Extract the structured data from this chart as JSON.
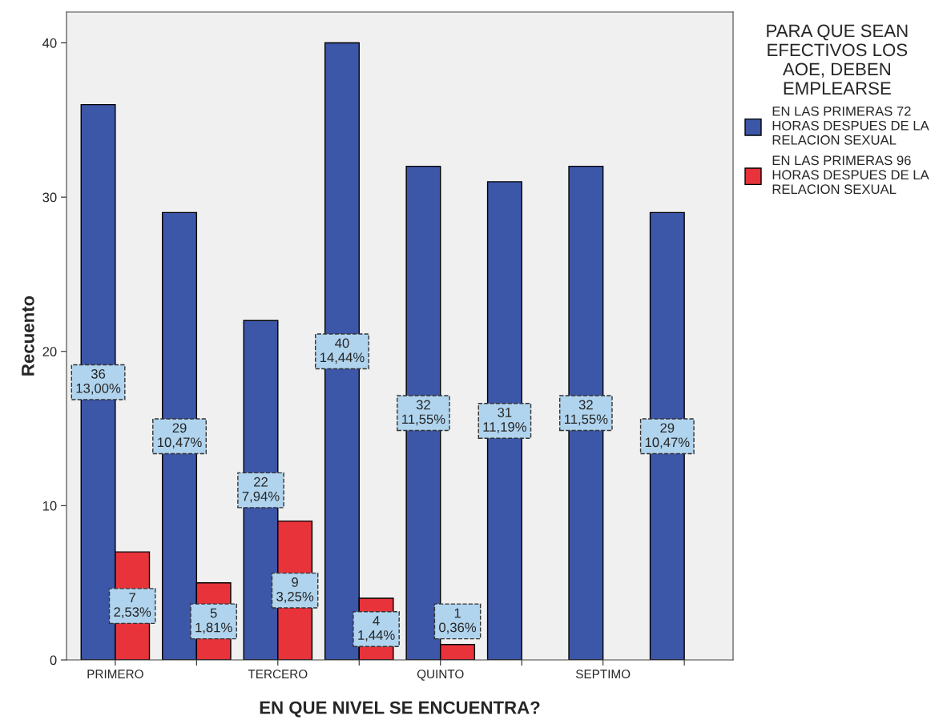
{
  "chart_data": {
    "type": "bar",
    "xlabel": "EN QUE NIVEL SE ENCUENTRA?",
    "ylabel": "Recuento",
    "legend_title": "PARA QUE SEAN\nEFECTIVOS LOS\nAOE, DEBEN\nEMPLEARSE",
    "categories": [
      "PRIMERO",
      null,
      "TERCERO",
      null,
      "QUINTO",
      null,
      "SEPTIMO",
      null
    ],
    "series": [
      {
        "name": "EN LAS PRIMERAS 72\nHORAS DESPUES DE LA\nRELACION SEXUAL",
        "color": "#3c56a8",
        "values": [
          36,
          29,
          22,
          40,
          32,
          31,
          32,
          29
        ],
        "value_labels": [
          "36\n13,00%",
          "29\n10,47%",
          "22\n7,94%",
          "40\n14,44%",
          "32\n11,55%",
          "31\n11,19%",
          "32\n11,55%",
          "29\n10,47%"
        ]
      },
      {
        "name": "EN LAS PRIMERAS 96\nHORAS DESPUES DE LA\nRELACION SEXUAL",
        "color": "#e8333b",
        "values": [
          7,
          5,
          9,
          4,
          1,
          null,
          null,
          null
        ],
        "value_labels": [
          "7\n2,53%",
          "5\n1,81%",
          "9\n3,25%",
          "4\n1,44%",
          "1\n0,36%",
          null,
          null,
          null
        ]
      }
    ],
    "ylim": [
      0,
      42
    ],
    "yticks": [
      0,
      10,
      20,
      30,
      40
    ],
    "grid": false,
    "legend": "top right"
  }
}
